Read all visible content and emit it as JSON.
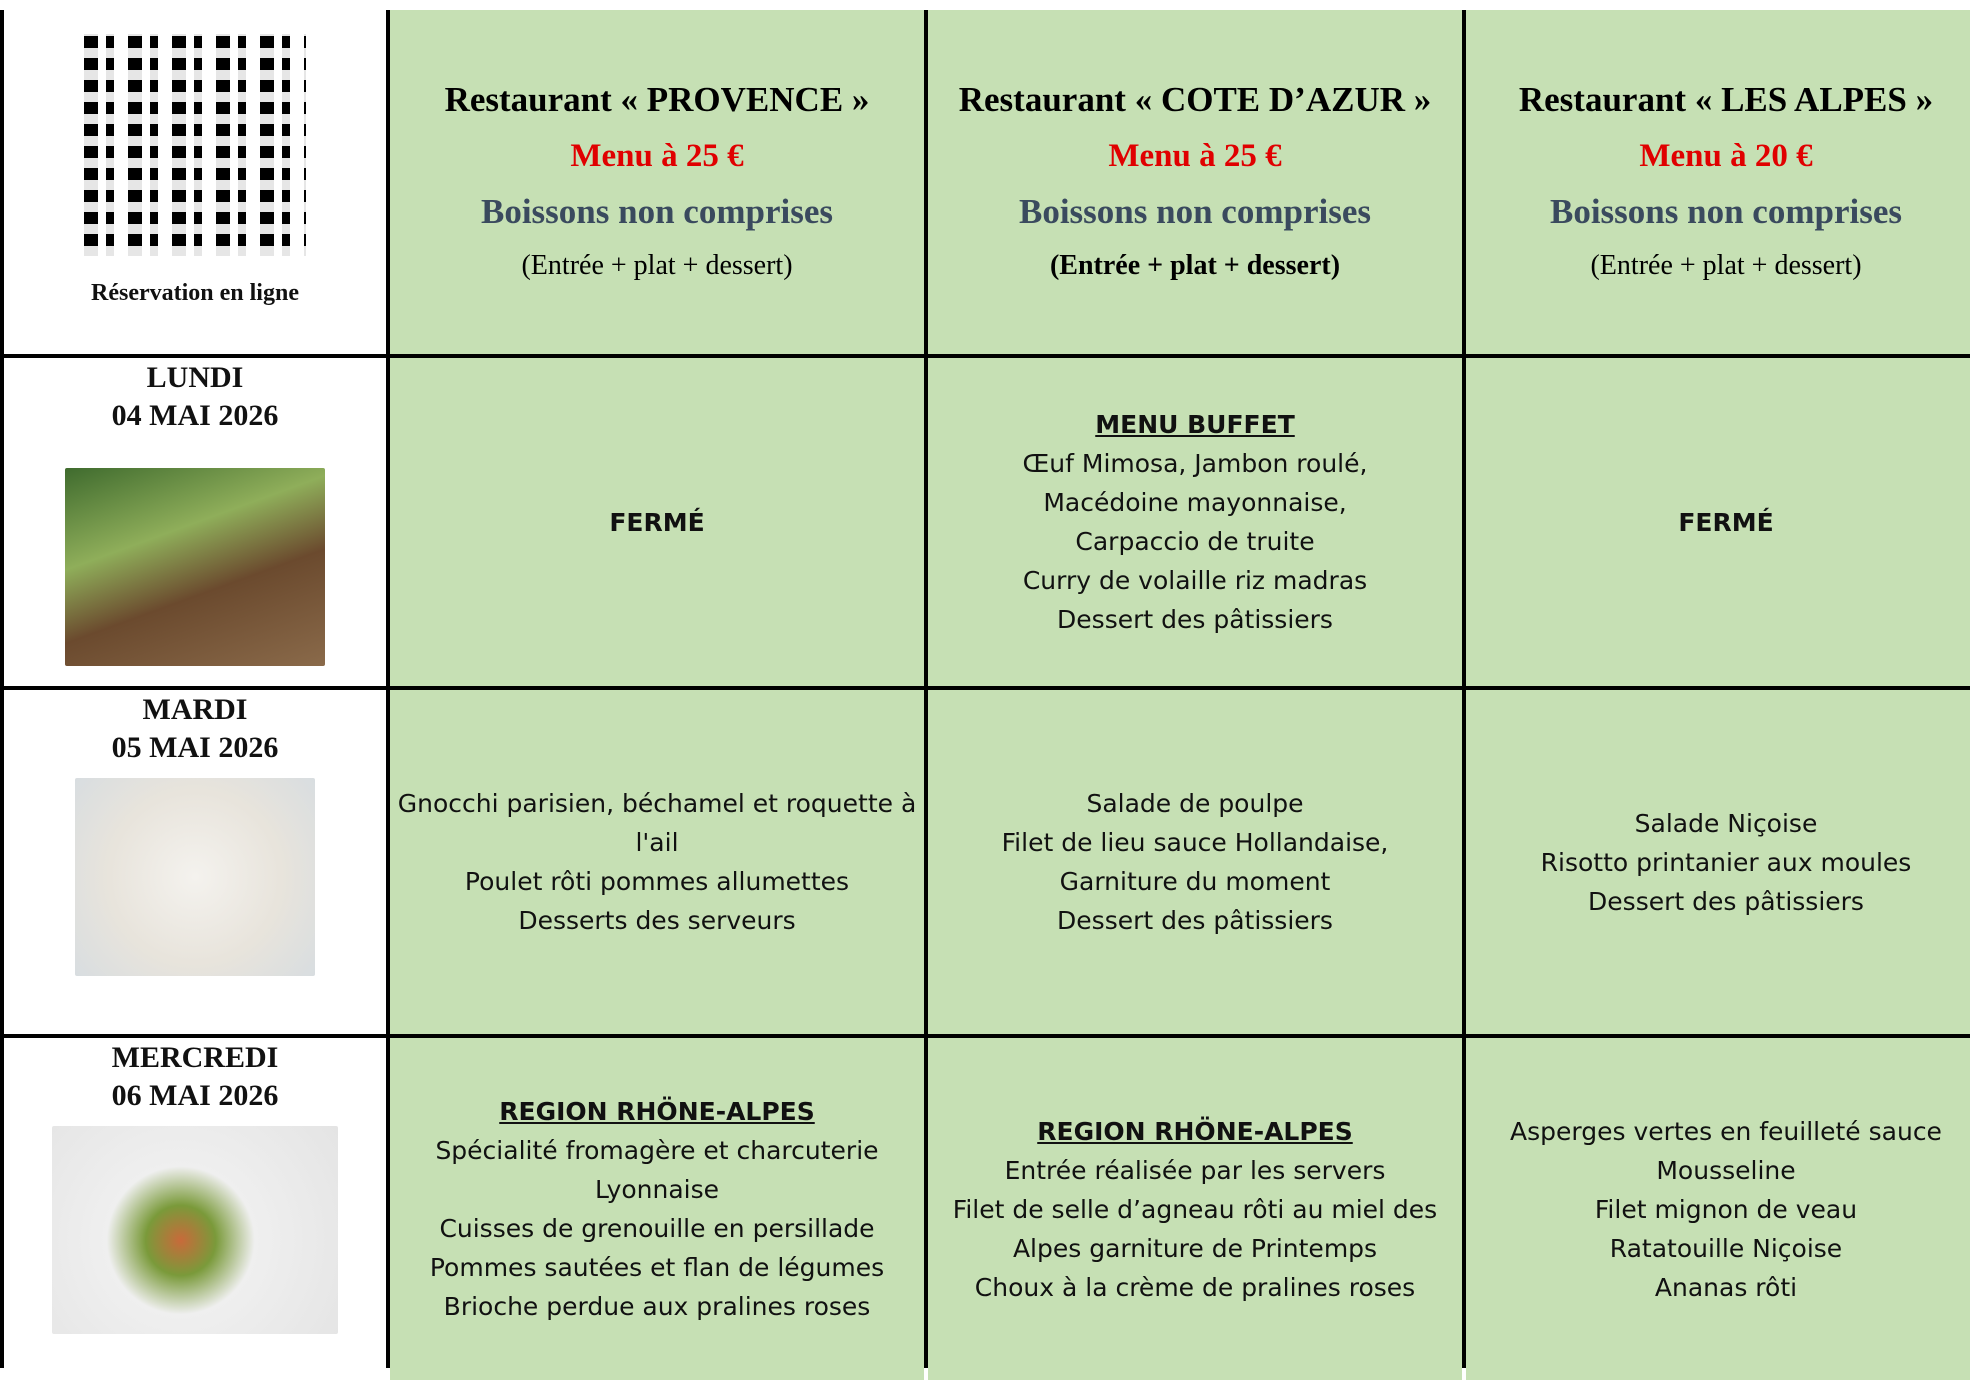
{
  "header": {
    "reservation": "Réservation en ligne",
    "restaurants": [
      {
        "name": "Restaurant « PROVENCE »",
        "price": "Menu à 25 €",
        "drinks": "Boissons non comprises",
        "formula": "(Entrée + plat + dessert)"
      },
      {
        "name": "Restaurant « COTE D’AZUR »",
        "price": "Menu à 25 €",
        "drinks": "Boissons non comprises",
        "formula": "(Entrée + plat + dessert)"
      },
      {
        "name": "Restaurant « LES ALPES »",
        "price": "Menu à 20 €",
        "drinks": "Boissons non comprises",
        "formula": "(Entrée + plat + dessert)"
      }
    ]
  },
  "days": [
    {
      "day": "LUNDI",
      "date": "04 MAI 2026",
      "menus": [
        {
          "status": "FERMÉ"
        },
        {
          "title": "MENU BUFFET",
          "lines": [
            "Œuf Mimosa, Jambon roulé,",
            "Macédoine mayonnaise,",
            "Carpaccio de truite",
            "Curry de volaille riz madras",
            "Dessert des pâtissiers"
          ]
        },
        {
          "status": "FERMÉ"
        }
      ]
    },
    {
      "day": "MARDI",
      "date": "05 MAI 2026",
      "menus": [
        {
          "lines": [
            "Gnocchi parisien, béchamel et roquette à l'ail",
            "Poulet rôti pommes allumettes",
            "Desserts des serveurs"
          ]
        },
        {
          "lines": [
            "Salade de poulpe",
            "Filet de lieu sauce Hollandaise,",
            "Garniture du moment",
            "Dessert des pâtissiers"
          ]
        },
        {
          "lines": [
            "Salade Niçoise",
            "Risotto printanier aux moules",
            "Dessert des pâtissiers"
          ]
        }
      ]
    },
    {
      "day": "MERCREDI",
      "date": "06 MAI 2026",
      "menus": [
        {
          "title": "REGION RHÖNE-ALPES",
          "lines": [
            "Spécialité fromagère et charcuterie Lyonnaise",
            "Cuisses de grenouille en persillade",
            "Pommes sautées et flan de légumes",
            "Brioche perdue aux pralines roses"
          ]
        },
        {
          "title": "REGION RHÖNE-ALPES",
          "lines": [
            "Entrée réalisée par les servers",
            "Filet de selle d’agneau rôti au miel des Alpes garniture de Printemps",
            "Choux à la crème de pralines roses"
          ]
        },
        {
          "lines": [
            "Asperges vertes en feuilleté sauce Mousseline",
            "Filet mignon de veau",
            "Ratatouille Niçoise",
            "Ananas rôti"
          ]
        }
      ]
    }
  ]
}
